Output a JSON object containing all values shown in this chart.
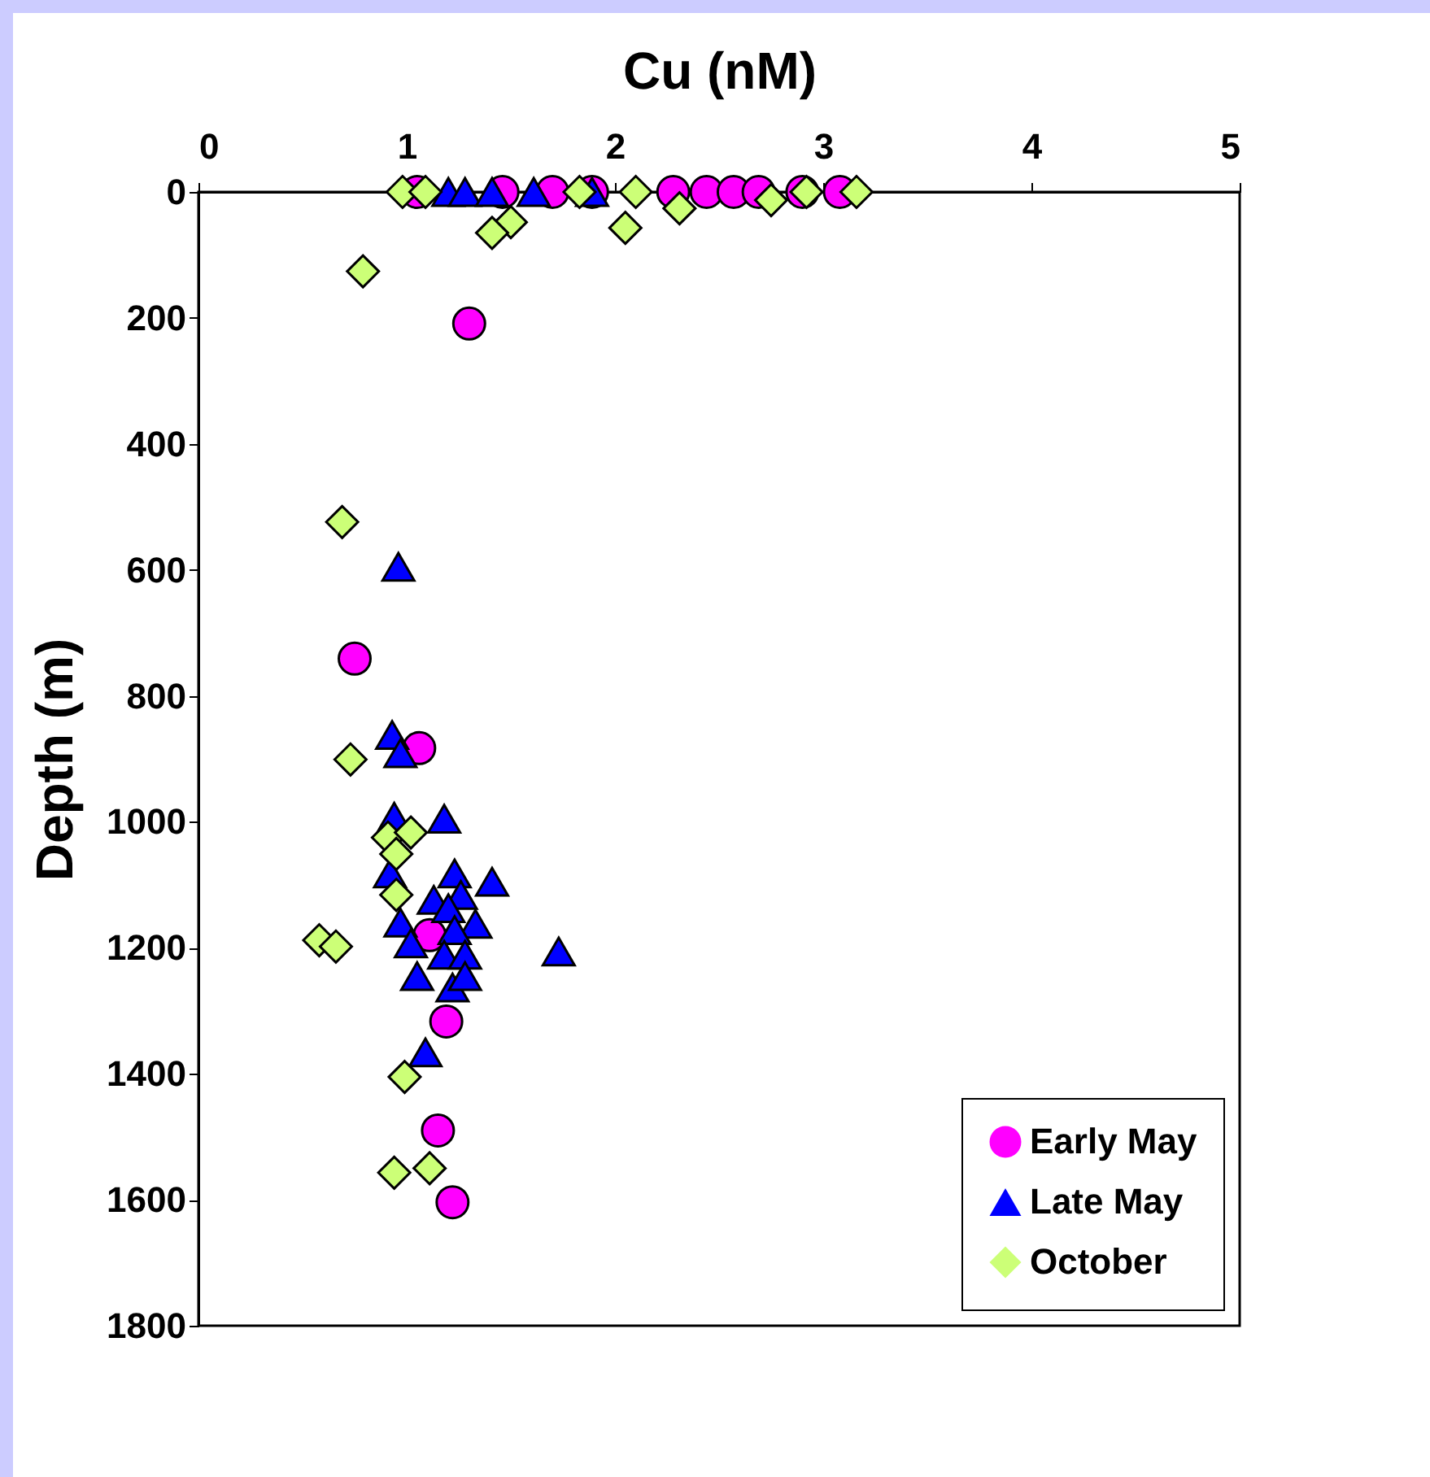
{
  "chart_data": {
    "type": "scatter",
    "xlabel": "Cu (nM)",
    "ylabel": "Depth (m)",
    "xlim": [
      0,
      5
    ],
    "xticks": [
      0,
      1,
      2,
      3,
      4,
      5
    ],
    "ylim": [
      1800,
      0
    ],
    "yticks": [
      0,
      200,
      400,
      600,
      800,
      1000,
      1200,
      1400,
      1600,
      1800
    ],
    "grid": false,
    "legend": "bottom right",
    "series": [
      {
        "name": "Early May",
        "color": "#ff00ff",
        "marker": "circle",
        "x": [
          1.05,
          1.46,
          1.7,
          1.89,
          2.28,
          2.44,
          2.57,
          2.69,
          2.9,
          3.08,
          1.3,
          0.75,
          1.06,
          1.11,
          1.19,
          1.15,
          1.22
        ],
        "values": [
          0,
          0,
          0,
          0,
          0,
          0,
          0,
          0,
          0,
          0,
          209,
          741,
          883,
          1180,
          1317,
          1490,
          1604
        ]
      },
      {
        "name": "Late May",
        "color": "#0000ff",
        "marker": "triangle",
        "x": [
          1.2,
          1.28,
          1.41,
          1.61,
          1.89,
          0.96,
          0.93,
          0.97,
          0.94,
          1.18,
          0.92,
          1.23,
          1.41,
          1.13,
          1.26,
          1.2,
          1.33,
          0.97,
          1.23,
          1.02,
          1.18,
          1.73,
          1.28,
          1.05,
          1.22,
          1.28,
          1.09
        ],
        "values": [
          0,
          0,
          0,
          0,
          0,
          595,
          862,
          891,
          992,
          995,
          1082,
          1082,
          1095,
          1124,
          1116,
          1137,
          1162,
          1160,
          1172,
          1193,
          1211,
          1206,
          1211,
          1245,
          1263,
          1245,
          1366
        ]
      },
      {
        "name": "October",
        "color": "#ccff77",
        "marker": "diamond",
        "x": [
          0.98,
          1.09,
          1.83,
          2.1,
          2.75,
          2.92,
          3.16,
          2.31,
          1.5,
          1.41,
          2.05,
          0.79,
          0.69,
          0.73,
          0.91,
          1.02,
          0.95,
          0.95,
          0.58,
          0.66,
          0.99,
          0.94,
          1.11
        ],
        "values": [
          0,
          0,
          0,
          0,
          13,
          0,
          0,
          26,
          48,
          65,
          57,
          126,
          524,
          901,
          1025,
          1017,
          1051,
          1116,
          1188,
          1198,
          1405,
          1557,
          1550
        ]
      }
    ]
  }
}
